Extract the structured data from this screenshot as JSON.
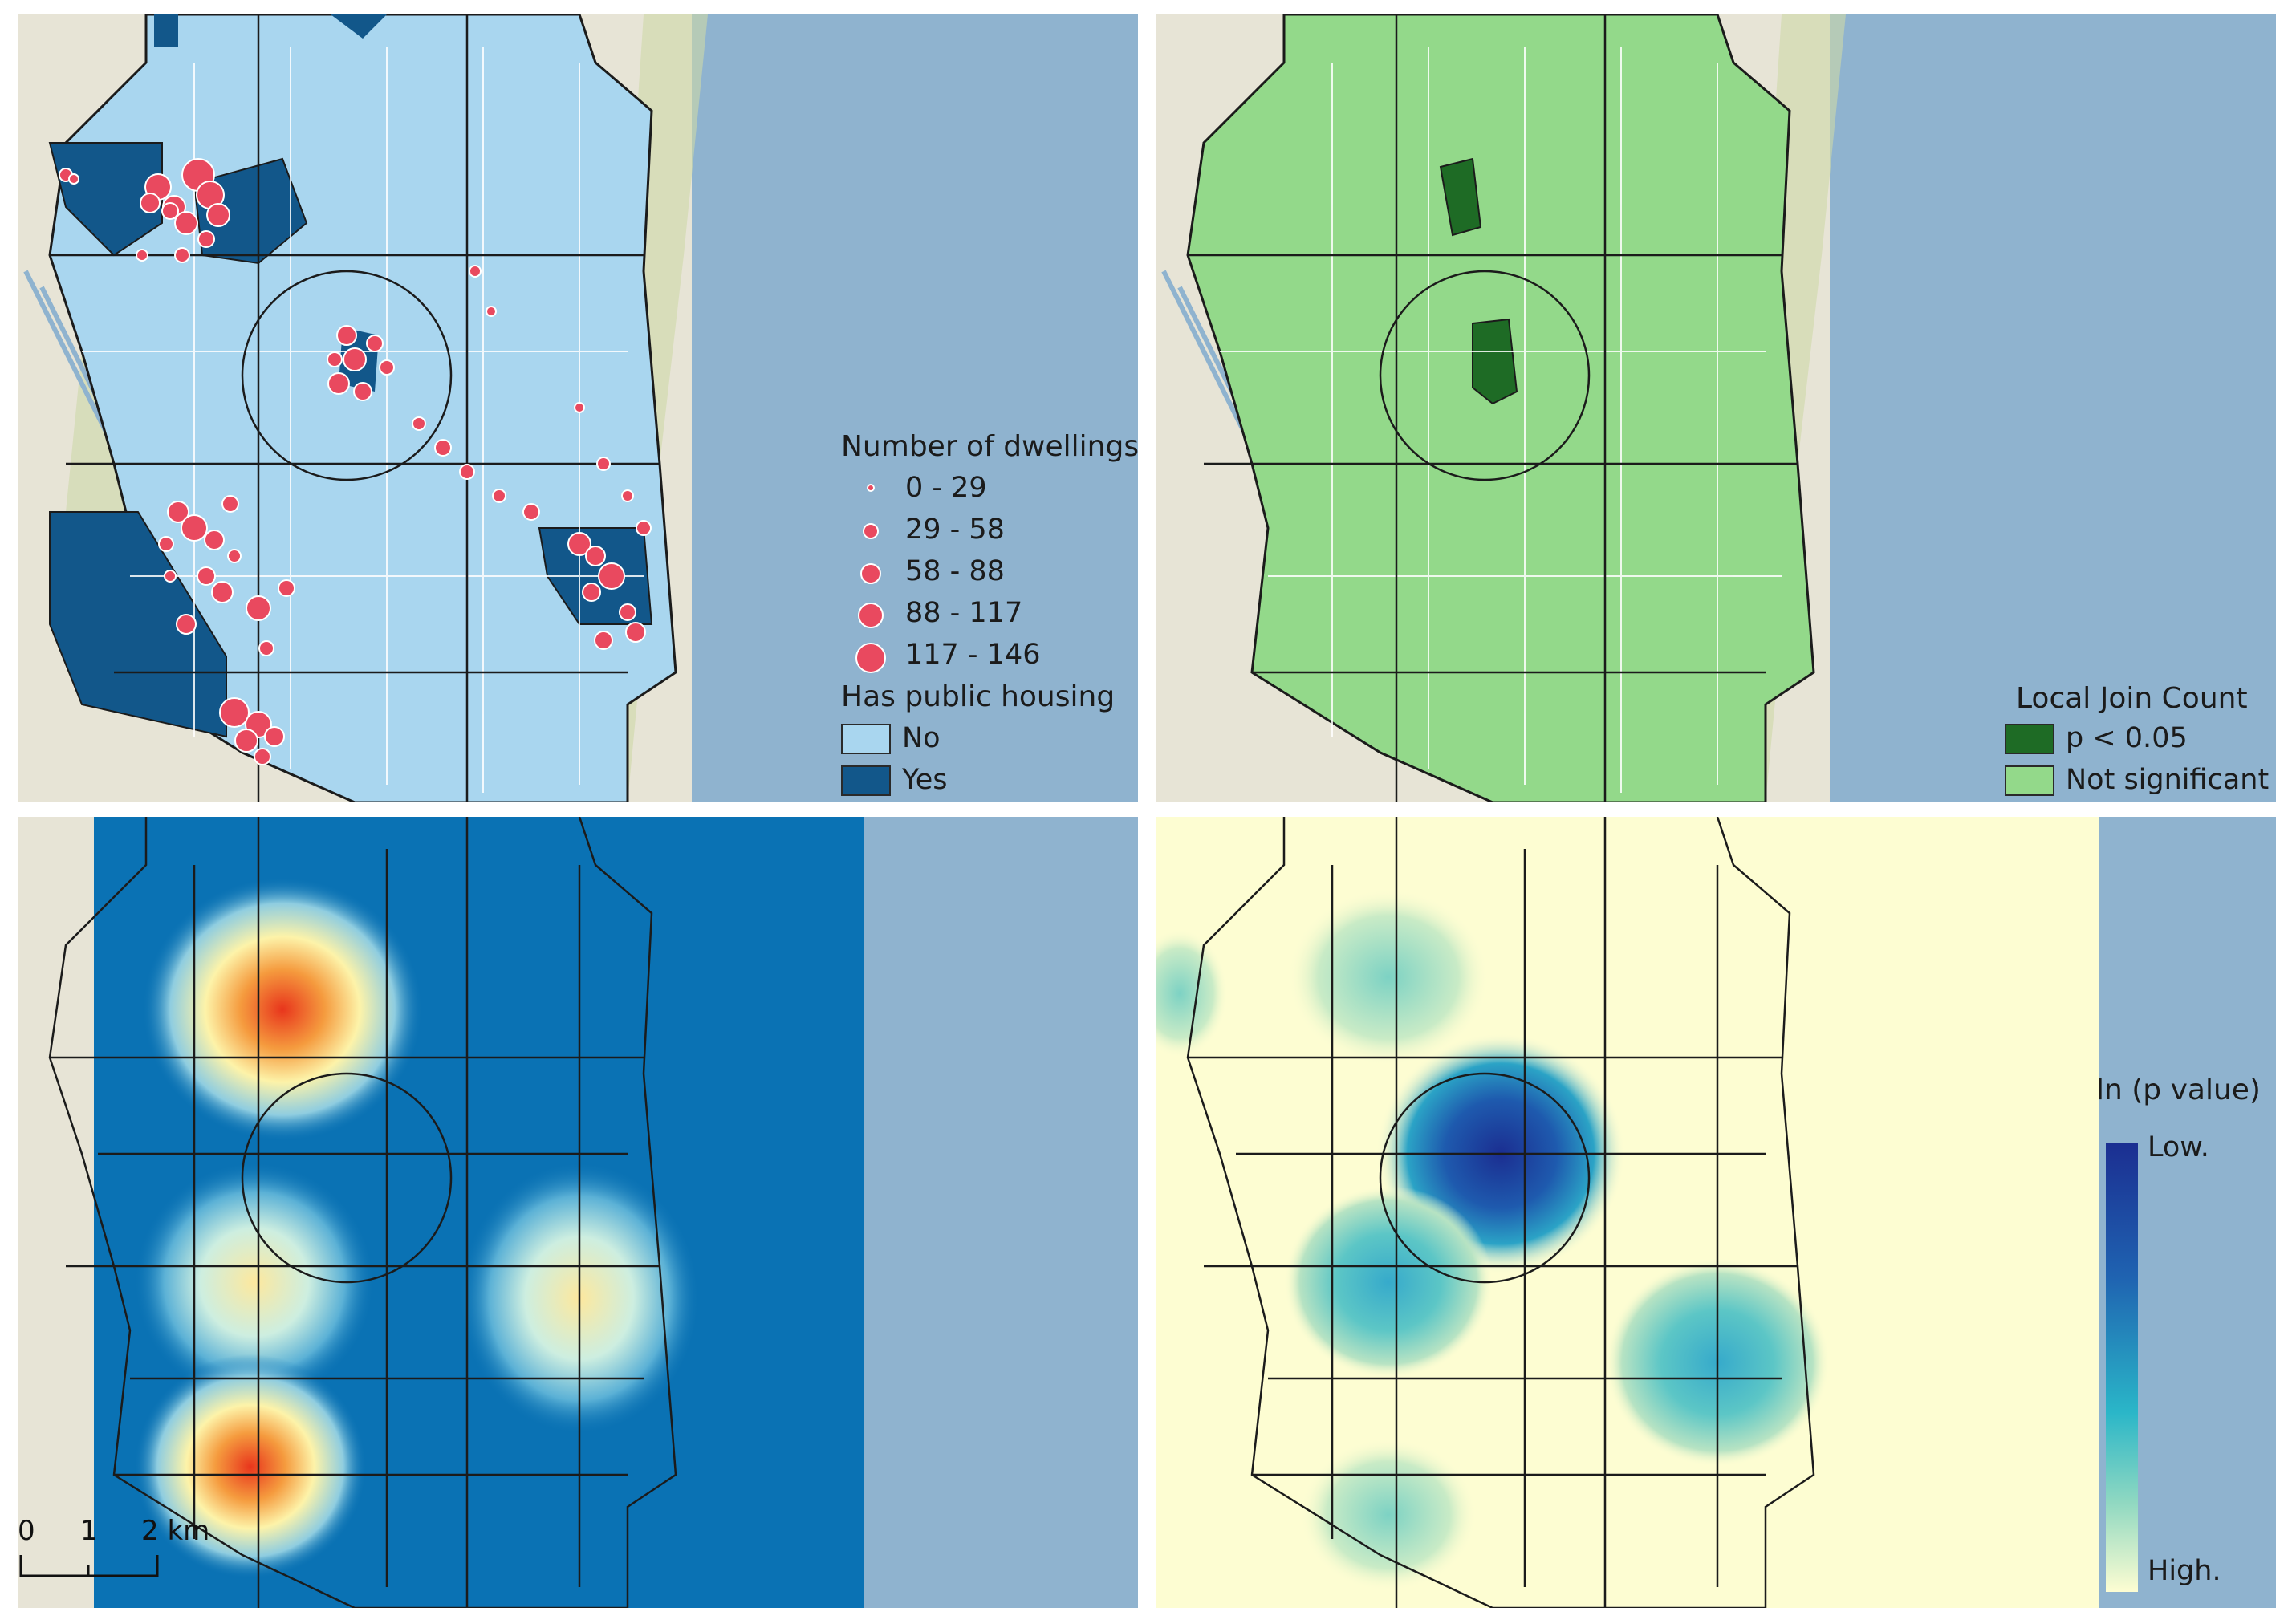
{
  "top_left": {
    "legend_dwellings_title": "Number of dwellings",
    "dwelling_classes": [
      "0 - 29",
      "29 - 58",
      "58 - 88",
      "88 - 117",
      "117 - 146"
    ],
    "legend_housing_title": "Has public housing",
    "housing_classes": [
      "No",
      "Yes"
    ],
    "colors": {
      "no": "#a9d6ef",
      "yes": "#12578a",
      "dots": "#e9495f",
      "sea": "#8fb3cf"
    }
  },
  "top_right": {
    "legend_title": "Local Join Count",
    "classes": [
      "p < 0.05",
      "Not significant"
    ],
    "colors": {
      "significant": "#1e6b25",
      "not_significant": "#93d98a"
    }
  },
  "bottom_left": {
    "scale_labels": [
      "0",
      "1",
      "2 km"
    ],
    "colors": {
      "background": "#0a72b4",
      "hot": "#e8351c"
    }
  },
  "bottom_right": {
    "legend_title": "ln (p value)",
    "legend_low": "Low.",
    "legend_high": "High.",
    "colors": {
      "low": "#1b2e91",
      "high": "#fdfdd2"
    }
  }
}
